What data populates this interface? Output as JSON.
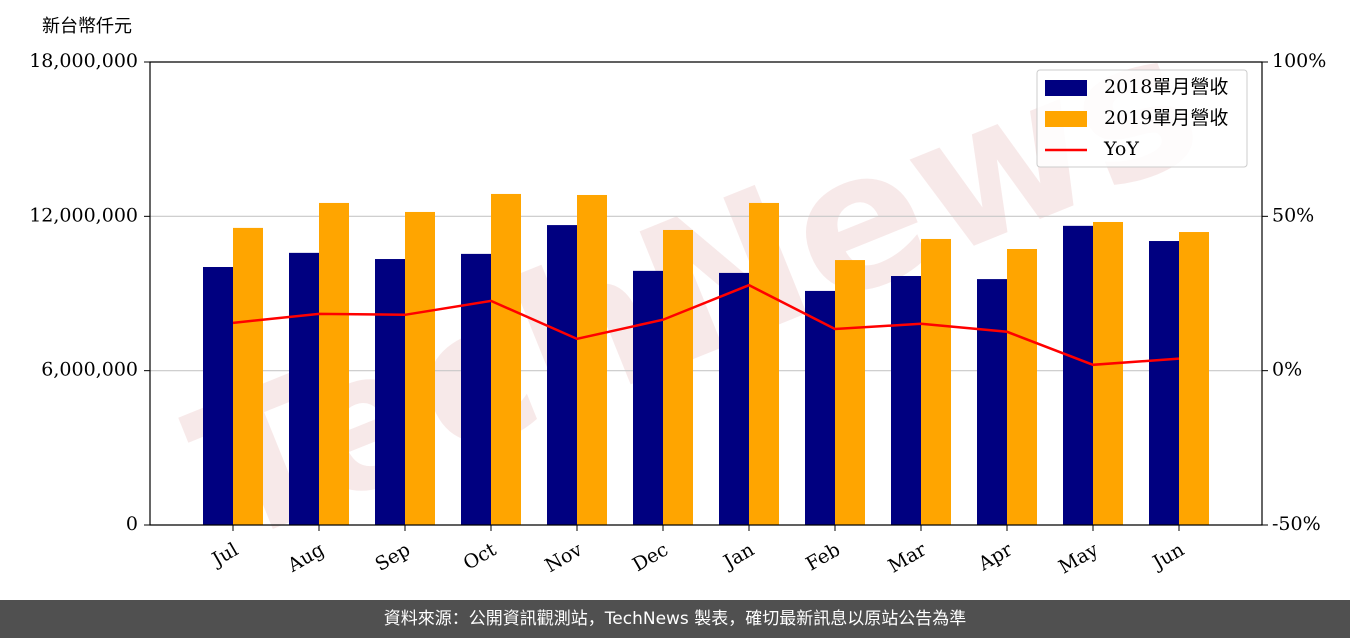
{
  "chart_data": {
    "type": "bar",
    "ylabel": "新台幣仟元",
    "watermark": "TechNews",
    "categories": [
      "Jul",
      "Aug",
      "Sep",
      "Oct",
      "Nov",
      "Dec",
      "Jan",
      "Feb",
      "Mar",
      "Apr",
      "May",
      "Jun"
    ],
    "series": [
      {
        "name": "2018單月營收",
        "color": "#000080",
        "values": [
          10030000,
          10580000,
          10340000,
          10540000,
          11660000,
          9880000,
          9800000,
          9100000,
          9680000,
          9560000,
          11630000,
          11040000
        ]
      },
      {
        "name": "2019單月營收",
        "color": "#ffa500",
        "values": [
          11550000,
          12520000,
          12170000,
          12870000,
          12830000,
          11470000,
          12520000,
          10300000,
          11120000,
          10730000,
          11780000,
          11390000
        ]
      },
      {
        "name": "YoY",
        "color": "#ff0000",
        "type": "line",
        "axis": "y2",
        "values": [
          15.5,
          18.4,
          18.1,
          22.6,
          10.3,
          16.5,
          27.7,
          13.5,
          15.2,
          12.6,
          1.9,
          3.9
        ]
      }
    ],
    "ylim": [
      0,
      18000000
    ],
    "yticks": [
      0,
      {
        "value": 6000000,
        "label": "6,000,000"
      },
      {
        "value": 12000000,
        "label": "12,000,000"
      },
      {
        "value": 18000000,
        "label": "18,000,000"
      }
    ],
    "y2lim": [
      -50,
      100
    ],
    "y2ticks": [
      {
        "value": -50,
        "label": "-50%"
      },
      {
        "value": 0,
        "label": "0%"
      },
      {
        "value": 50,
        "label": "50%"
      },
      {
        "value": 100,
        "label": "100%"
      }
    ],
    "grid": true,
    "legend": "upper right"
  },
  "footer": "資料來源：公開資訊觀測站，TechNews 製表，確切最新訊息以原站公告為準"
}
